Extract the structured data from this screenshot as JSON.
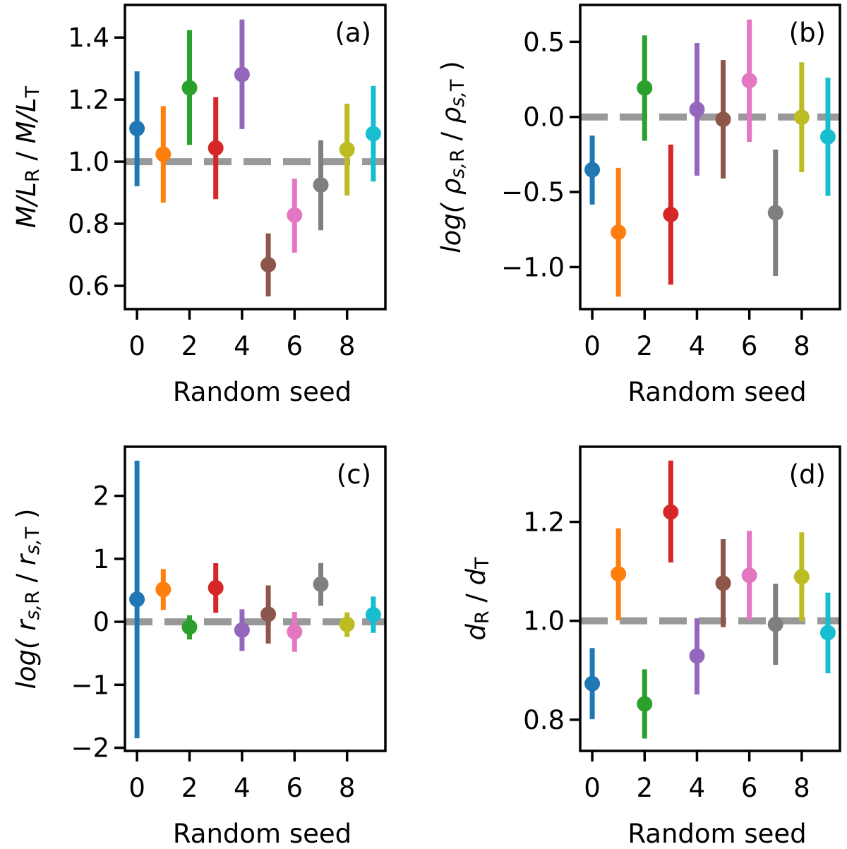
{
  "figure": {
    "colors": [
      "#1f77b4",
      "#ff7f0e",
      "#2ca02c",
      "#d62728",
      "#9467bd",
      "#8c564b",
      "#e377c2",
      "#7f7f7f",
      "#bcbd22",
      "#17becf"
    ],
    "reference_line_color": "#999999"
  },
  "chart_data": [
    {
      "type": "scatter",
      "panel_label": "(a)",
      "xlabel": "Random seed",
      "ylabel": {
        "parts": [
          [
            "M/L",
            "i"
          ],
          [
            "R",
            "sub"
          ],
          [
            " / ",
            "n"
          ],
          [
            "M/L",
            "i"
          ],
          [
            "T",
            "sub"
          ]
        ]
      },
      "x_ticks": [
        0,
        2,
        4,
        6,
        8
      ],
      "y_ticks": [
        0.6,
        0.8,
        1.0,
        1.2,
        1.4
      ],
      "y_tick_labels": [
        "0.6",
        "0.8",
        "1.0",
        "1.2",
        "1.4"
      ],
      "xlim": [
        -0.46,
        9.46
      ],
      "ylim": [
        0.525,
        1.505
      ],
      "reference_line": 1.0,
      "x": [
        0,
        1,
        2,
        3,
        4,
        5,
        6,
        7,
        8,
        9
      ],
      "y": [
        1.107,
        1.024,
        1.238,
        1.044,
        1.281,
        0.668,
        0.828,
        0.925,
        1.039,
        1.09
      ],
      "y_upper": [
        1.291,
        1.179,
        1.424,
        1.208,
        1.458,
        0.769,
        0.945,
        1.069,
        1.187,
        1.244
      ],
      "y_lower": [
        0.921,
        0.868,
        1.054,
        0.879,
        1.105,
        0.566,
        0.707,
        0.779,
        0.891,
        0.936
      ]
    },
    {
      "type": "scatter",
      "panel_label": "(b)",
      "xlabel": "Random seed",
      "ylabel": {
        "parts": [
          [
            "log( ",
            "i"
          ],
          [
            "ρ",
            "i"
          ],
          [
            "s,",
            "subi"
          ],
          [
            "R",
            "sub"
          ],
          [
            " / ",
            "n"
          ],
          [
            "ρ",
            "i"
          ],
          [
            "s,",
            "subi"
          ],
          [
            "T",
            "sub"
          ],
          [
            " )",
            "n"
          ]
        ]
      },
      "x_ticks": [
        0,
        2,
        4,
        6,
        8
      ],
      "y_ticks": [
        -1.0,
        -0.5,
        0.0,
        0.5
      ],
      "y_tick_labels": [
        "−1.0",
        "−0.5",
        "0.0",
        "0.5"
      ],
      "xlim": [
        -0.46,
        9.46
      ],
      "ylim": [
        -1.28,
        0.746
      ],
      "reference_line": 0.0,
      "x": [
        0,
        1,
        2,
        3,
        4,
        5,
        6,
        7,
        8,
        9
      ],
      "y": [
        -0.352,
        -0.768,
        0.193,
        -0.65,
        0.05,
        -0.016,
        0.242,
        -0.638,
        -0.002,
        -0.132
      ],
      "y_upper": [
        -0.124,
        -0.339,
        0.543,
        -0.184,
        0.492,
        0.379,
        0.649,
        -0.217,
        0.364,
        0.262
      ],
      "y_lower": [
        -0.584,
        -1.197,
        -0.159,
        -1.117,
        -0.391,
        -0.41,
        -0.166,
        -1.059,
        -0.368,
        -0.526
      ]
    },
    {
      "type": "scatter",
      "panel_label": "(c)",
      "xlabel": "Random seed",
      "ylabel": {
        "parts": [
          [
            "log( ",
            "i"
          ],
          [
            "r",
            "i"
          ],
          [
            "s,",
            "subi"
          ],
          [
            "R",
            "sub"
          ],
          [
            " / ",
            "n"
          ],
          [
            "r",
            "i"
          ],
          [
            "s,",
            "subi"
          ],
          [
            "T",
            "sub"
          ],
          [
            " )",
            "n"
          ]
        ]
      },
      "x_ticks": [
        0,
        2,
        4,
        6,
        8
      ],
      "y_ticks": [
        -2,
        -1,
        0,
        1,
        2
      ],
      "y_tick_labels": [
        "−2",
        "−1",
        "0",
        "1",
        "2"
      ],
      "xlim": [
        -0.46,
        9.46
      ],
      "ylim": [
        -2.05,
        2.78
      ],
      "reference_line": 0.0,
      "x": [
        0,
        1,
        2,
        3,
        4,
        5,
        6,
        7,
        8,
        9
      ],
      "y": [
        0.357,
        0.514,
        -0.083,
        0.54,
        -0.131,
        0.12,
        -0.158,
        0.597,
        -0.041,
        0.113
      ],
      "y_upper": [
        2.559,
        0.837,
        0.105,
        0.931,
        0.199,
        0.578,
        0.158,
        0.934,
        0.15,
        0.402
      ],
      "y_lower": [
        -1.85,
        0.188,
        -0.281,
        0.143,
        -0.462,
        -0.345,
        -0.477,
        0.255,
        -0.24,
        -0.176
      ]
    },
    {
      "type": "scatter",
      "panel_label": "(d)",
      "xlabel": "Random seed",
      "ylabel": {
        "parts": [
          [
            "d",
            "i"
          ],
          [
            "R",
            "sub"
          ],
          [
            " / ",
            "n"
          ],
          [
            "d",
            "i"
          ],
          [
            "T",
            "sub"
          ]
        ]
      },
      "x_ticks": [
        0,
        2,
        4,
        6,
        8
      ],
      "y_ticks": [
        0.8,
        1.0,
        1.2
      ],
      "y_tick_labels": [
        "0.8",
        "1.0",
        "1.2"
      ],
      "xlim": [
        -0.46,
        9.46
      ],
      "ylim": [
        0.737,
        1.352
      ],
      "reference_line": 1.0,
      "x": [
        0,
        1,
        2,
        3,
        4,
        5,
        6,
        7,
        8,
        9
      ],
      "y": [
        0.873,
        1.095,
        0.832,
        1.22,
        0.929,
        1.076,
        1.092,
        0.993,
        1.089,
        0.976
      ],
      "y_upper": [
        0.945,
        1.187,
        0.902,
        1.324,
        1.005,
        1.165,
        1.182,
        1.075,
        1.179,
        1.057
      ],
      "y_lower": [
        0.801,
        1.001,
        0.762,
        1.118,
        0.851,
        0.987,
        1.001,
        0.911,
        0.999,
        0.894
      ]
    }
  ]
}
